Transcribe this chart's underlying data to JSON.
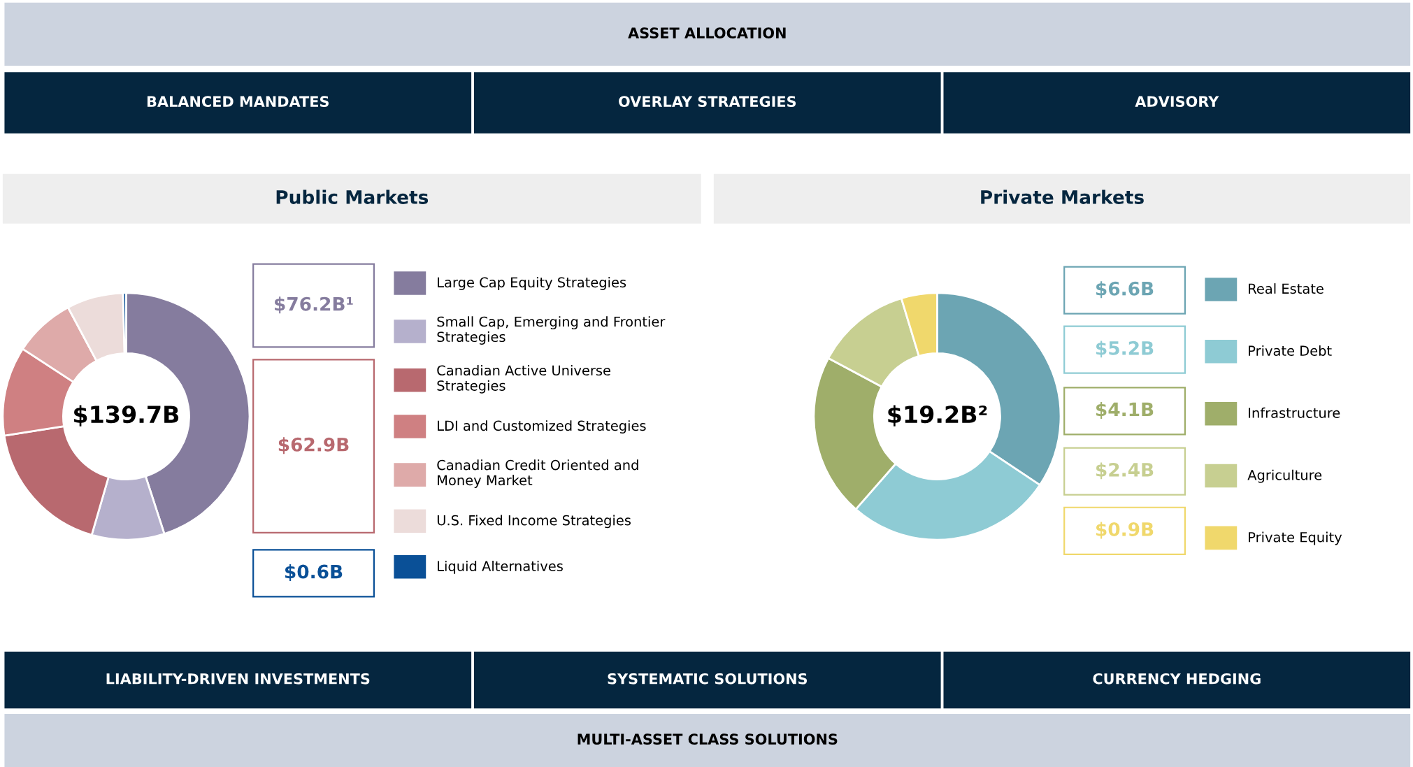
{
  "chart_data": [
    {
      "type": "other",
      "annotations": [
        "ASSET ALLOCATION",
        "BALANCED MANDATES",
        "OVERLAY STRATEGIES",
        "ADVISORY"
      ]
    },
    {
      "type": "donut",
      "title": "Public Markets",
      "legend": "right",
      "categories": [
        "Large Cap Equity Strategies",
        "Small Cap, Emerging and Frontier\nStrategies",
        "Canadian Active Universe\nStrategies",
        "LDI and Customized Strategies",
        "Canadian Credit Oriented and\nMoney Market",
        "U.S. Fixed Income Strategies",
        "Liquid Alternatives"
      ],
      "values": [
        45,
        9.5,
        18,
        11.7,
        8,
        7.4,
        0.4
      ],
      "colors": [
        "#857c9e",
        "#b5b0cc",
        "#b8696f",
        "#cf8082",
        "#deaaa9",
        "#ecdcda",
        "#0a5097"
      ],
      "annotations": [
        "$139.7B",
        "$76.2B¹",
        "$62.9B",
        "$0.6B"
      ]
    },
    {
      "type": "donut",
      "title": "Private Markets",
      "legend": "right",
      "categories": [
        "Real Estate",
        "Private Debt",
        "Infrastructure",
        "Agriculture",
        "Private Equity"
      ],
      "values": [
        6.6,
        5.2,
        4.1,
        2.4,
        0.9
      ],
      "colors": [
        "#6ca5b3",
        "#8ecbd4",
        "#9fae6a",
        "#c7cf91",
        "#f0d86c"
      ],
      "value_labels": [
        "$6.6B",
        "$5.2B",
        "$4.1B",
        "$2.4B",
        "$0.9B"
      ],
      "annotations": [
        "$19.2B²"
      ]
    },
    {
      "type": "other",
      "annotations": [
        "LIABILITY-DRIVEN INVESTMENTS",
        "SYSTEMATIC SOLUTIONS",
        "CURRENCY HEDGING",
        "MULTI-ASSET CLASS SOLUTIONS"
      ]
    }
  ]
}
